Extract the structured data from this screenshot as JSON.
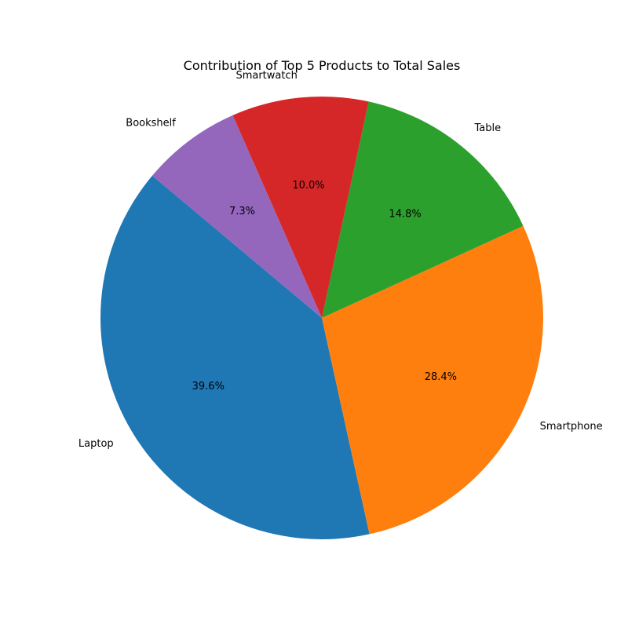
{
  "chart_data": {
    "type": "pie",
    "title": "Contribution of Top 5 Products to Total Sales",
    "slices": [
      {
        "label": "Laptop",
        "value": 39.6,
        "pct_label": "39.6%",
        "color": "#1f77b4"
      },
      {
        "label": "Smartphone",
        "value": 28.4,
        "pct_label": "28.4%",
        "color": "#ff7f0e"
      },
      {
        "label": "Table",
        "value": 14.8,
        "pct_label": "14.8%",
        "color": "#2ca02c"
      },
      {
        "label": "Smartwatch",
        "value": 10.0,
        "pct_label": "10.0%",
        "color": "#d62728"
      },
      {
        "label": "Bookshelf",
        "value": 7.3,
        "pct_label": "7.3%",
        "color": "#9467bd"
      }
    ],
    "start_angle_deg": 140,
    "direction": "counterclockwise"
  }
}
